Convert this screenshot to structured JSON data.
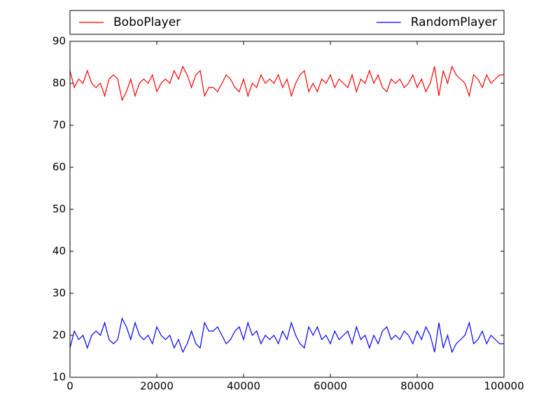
{
  "chart_data": {
    "type": "line",
    "x": [
      0,
      1000,
      2000,
      3000,
      4000,
      5000,
      6000,
      7000,
      8000,
      9000,
      10000,
      11000,
      12000,
      13000,
      14000,
      15000,
      16000,
      17000,
      18000,
      19000,
      20000,
      21000,
      22000,
      23000,
      24000,
      25000,
      26000,
      27000,
      28000,
      29000,
      30000,
      31000,
      32000,
      33000,
      34000,
      35000,
      36000,
      37000,
      38000,
      39000,
      40000,
      41000,
      42000,
      43000,
      44000,
      45000,
      46000,
      47000,
      48000,
      49000,
      50000,
      51000,
      52000,
      53000,
      54000,
      55000,
      56000,
      57000,
      58000,
      59000,
      60000,
      61000,
      62000,
      63000,
      64000,
      65000,
      66000,
      67000,
      68000,
      69000,
      70000,
      71000,
      72000,
      73000,
      74000,
      75000,
      76000,
      77000,
      78000,
      79000,
      80000,
      81000,
      82000,
      83000,
      84000,
      85000,
      86000,
      87000,
      88000,
      89000,
      90000,
      91000,
      92000,
      93000,
      94000,
      95000,
      96000,
      97000,
      98000,
      99000,
      100000
    ],
    "series": [
      {
        "name": "BoboPlayer",
        "color": "#ff0000",
        "values": [
          83,
          79,
          81,
          80,
          83,
          80,
          79,
          80,
          77,
          81,
          82,
          81,
          76,
          78,
          81,
          77,
          80,
          81,
          80,
          82,
          78,
          80,
          81,
          80,
          83,
          81,
          84,
          82,
          79,
          82,
          83,
          77,
          79,
          79,
          78,
          80,
          82,
          81,
          79,
          78,
          81,
          77,
          80,
          79,
          82,
          80,
          81,
          80,
          82,
          79,
          81,
          77,
          80,
          82,
          83,
          78,
          80,
          78,
          81,
          80,
          82,
          79,
          81,
          80,
          79,
          82,
          78,
          81,
          80,
          83,
          80,
          82,
          79,
          78,
          81,
          80,
          81,
          79,
          80,
          82,
          79,
          81,
          78,
          80,
          84,
          77,
          83,
          80,
          84,
          82,
          81,
          80,
          77,
          82,
          81,
          79,
          82,
          80,
          81,
          82,
          82
        ]
      },
      {
        "name": "RandomPlayer",
        "color": "#0000ff",
        "values": [
          17,
          21,
          19,
          20,
          17,
          20,
          21,
          20,
          23,
          19,
          18,
          19,
          24,
          22,
          19,
          23,
          20,
          19,
          20,
          18,
          22,
          20,
          19,
          20,
          17,
          19,
          16,
          18,
          21,
          18,
          17,
          23,
          21,
          21,
          22,
          20,
          18,
          19,
          21,
          22,
          19,
          23,
          20,
          21,
          18,
          20,
          19,
          20,
          18,
          21,
          19,
          23,
          20,
          18,
          17,
          22,
          20,
          22,
          19,
          20,
          18,
          21,
          19,
          20,
          21,
          18,
          22,
          19,
          20,
          17,
          20,
          18,
          21,
          22,
          19,
          20,
          19,
          21,
          20,
          18,
          21,
          19,
          22,
          20,
          16,
          23,
          17,
          20,
          16,
          18,
          19,
          20,
          23,
          18,
          19,
          21,
          18,
          20,
          19,
          18,
          18
        ]
      }
    ],
    "xlim": [
      0,
      100000
    ],
    "xticks": [
      0,
      20000,
      40000,
      60000,
      80000,
      100000
    ],
    "ylim": [
      10,
      90
    ],
    "yticks": [
      10,
      20,
      30,
      40,
      50,
      60,
      70,
      80,
      90
    ],
    "legend": "top"
  }
}
